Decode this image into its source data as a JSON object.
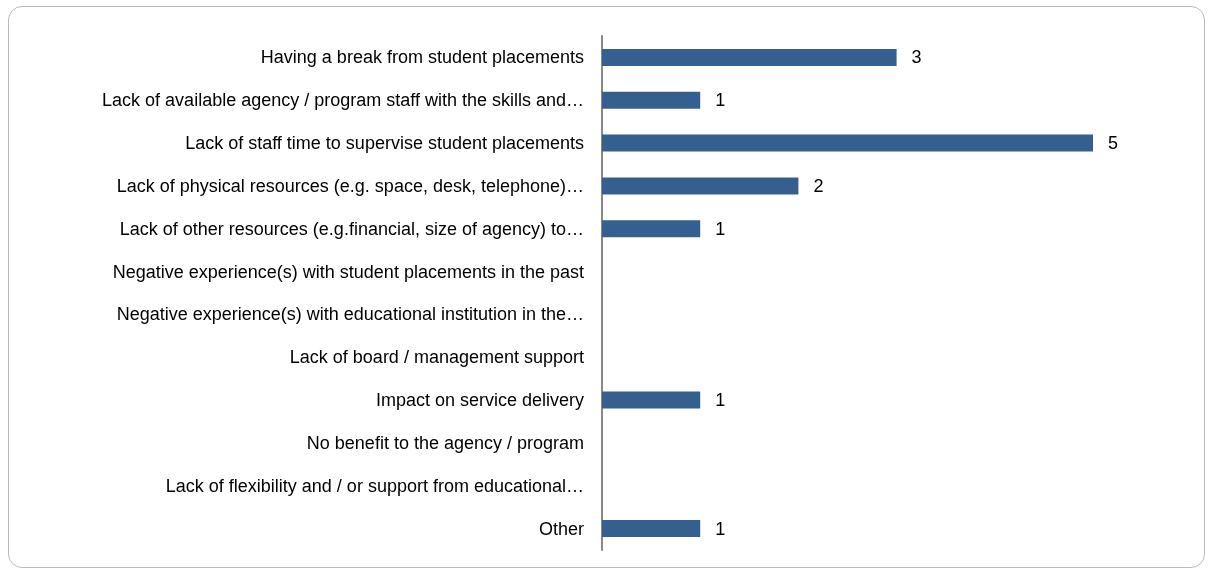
{
  "chart_data": {
    "type": "bar",
    "orientation": "horizontal",
    "data_labels": true,
    "color": "#355f8f",
    "xlim": [
      0,
      5
    ],
    "tick_labels": "y",
    "categories": [
      "Having a break from student placements",
      "Lack of available agency / program staff with the skills and…",
      "Lack of staff time to supervise student placements",
      "Lack of physical resources (e.g. space, desk, telephone)…",
      "Lack of other resources (e.g.financial, size of agency) to…",
      "Negative experience(s) with student placements in the past",
      "Negative experience(s) with educational institution in the…",
      "Lack of board / management support",
      "Impact on service delivery",
      "No benefit to the agency / program",
      "Lack of flexibility and / or support from educational…",
      "Other"
    ],
    "values": [
      3,
      1,
      5,
      2,
      1,
      null,
      null,
      null,
      1,
      null,
      null,
      1
    ]
  }
}
